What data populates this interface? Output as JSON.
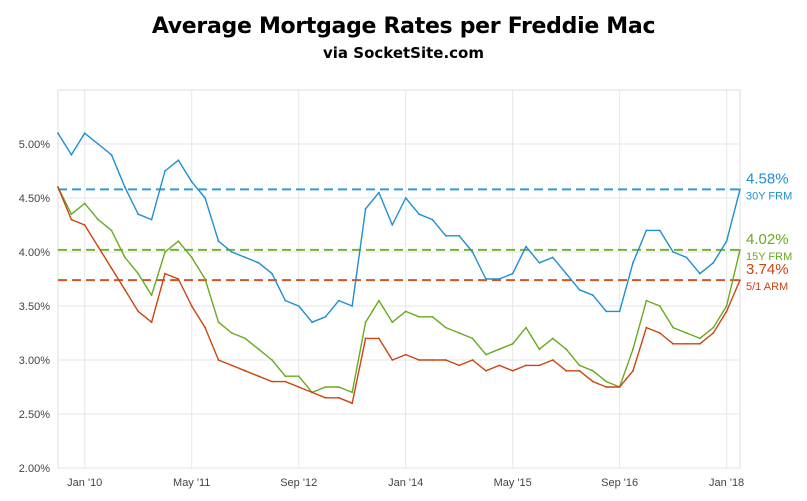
{
  "header": {
    "title": "Average Mortgage Rates per Freddie Mac",
    "subtitle": "via SocketSite.com"
  },
  "chart_data": {
    "type": "line",
    "title": "Average Mortgage Rates per Freddie Mac",
    "subtitle": "via SocketSite.com",
    "xlabel": "",
    "ylabel": "",
    "ylim": [
      2.0,
      5.5
    ],
    "xlim": [
      "2009-09",
      "2018-03"
    ],
    "y_ticks": [
      "2.00%",
      "2.50%",
      "3.00%",
      "3.50%",
      "4.00%",
      "4.50%",
      "5.00%"
    ],
    "x_ticks": [
      {
        "label": "Jan '10",
        "date": "2010-01"
      },
      {
        "label": "May '11",
        "date": "2011-05"
      },
      {
        "label": "Sep '12",
        "date": "2012-09"
      },
      {
        "label": "Jan '14",
        "date": "2014-01"
      },
      {
        "label": "May '15",
        "date": "2015-05"
      },
      {
        "label": "Sep '16",
        "date": "2016-09"
      },
      {
        "label": "Jan '18",
        "date": "2018-01"
      }
    ],
    "grid": true,
    "series": [
      {
        "name": "30Y FRM",
        "color": "#1f8fd1",
        "latest_value": "4.58%",
        "reference_line": 4.58,
        "x": [
          "2009-09",
          "2009-11",
          "2010-01",
          "2010-03",
          "2010-05",
          "2010-07",
          "2010-09",
          "2010-11",
          "2011-01",
          "2011-03",
          "2011-05",
          "2011-07",
          "2011-09",
          "2011-11",
          "2012-01",
          "2012-03",
          "2012-05",
          "2012-07",
          "2012-09",
          "2012-11",
          "2013-01",
          "2013-03",
          "2013-05",
          "2013-07",
          "2013-09",
          "2013-11",
          "2014-01",
          "2014-03",
          "2014-05",
          "2014-07",
          "2014-09",
          "2014-11",
          "2015-01",
          "2015-03",
          "2015-05",
          "2015-07",
          "2015-09",
          "2015-11",
          "2016-01",
          "2016-03",
          "2016-05",
          "2016-07",
          "2016-09",
          "2016-11",
          "2017-01",
          "2017-03",
          "2017-05",
          "2017-07",
          "2017-09",
          "2017-11",
          "2018-01",
          "2018-03"
        ],
        "values": [
          5.1,
          4.9,
          5.1,
          5.0,
          4.9,
          4.6,
          4.35,
          4.3,
          4.75,
          4.85,
          4.65,
          4.5,
          4.1,
          4.0,
          3.95,
          3.9,
          3.8,
          3.55,
          3.5,
          3.35,
          3.4,
          3.55,
          3.5,
          4.4,
          4.55,
          4.25,
          4.5,
          4.35,
          4.3,
          4.15,
          4.15,
          4.0,
          3.75,
          3.75,
          3.8,
          4.05,
          3.9,
          3.95,
          3.8,
          3.65,
          3.6,
          3.45,
          3.45,
          3.9,
          4.2,
          4.2,
          4.0,
          3.95,
          3.8,
          3.9,
          4.1,
          4.58
        ]
      },
      {
        "name": "15Y FRM",
        "color": "#6aaa1f",
        "latest_value": "4.02%",
        "reference_line": 4.02,
        "x": [
          "2009-09",
          "2009-11",
          "2010-01",
          "2010-03",
          "2010-05",
          "2010-07",
          "2010-09",
          "2010-11",
          "2011-01",
          "2011-03",
          "2011-05",
          "2011-07",
          "2011-09",
          "2011-11",
          "2012-01",
          "2012-03",
          "2012-05",
          "2012-07",
          "2012-09",
          "2012-11",
          "2013-01",
          "2013-03",
          "2013-05",
          "2013-07",
          "2013-09",
          "2013-11",
          "2014-01",
          "2014-03",
          "2014-05",
          "2014-07",
          "2014-09",
          "2014-11",
          "2015-01",
          "2015-03",
          "2015-05",
          "2015-07",
          "2015-09",
          "2015-11",
          "2016-01",
          "2016-03",
          "2016-05",
          "2016-07",
          "2016-09",
          "2016-11",
          "2017-01",
          "2017-03",
          "2017-05",
          "2017-07",
          "2017-09",
          "2017-11",
          "2018-01",
          "2018-03"
        ],
        "values": [
          4.6,
          4.35,
          4.45,
          4.3,
          4.2,
          3.95,
          3.8,
          3.6,
          4.0,
          4.1,
          3.95,
          3.75,
          3.35,
          3.25,
          3.2,
          3.1,
          3.0,
          2.85,
          2.85,
          2.7,
          2.75,
          2.75,
          2.7,
          3.35,
          3.55,
          3.35,
          3.45,
          3.4,
          3.4,
          3.3,
          3.25,
          3.2,
          3.05,
          3.1,
          3.15,
          3.3,
          3.1,
          3.2,
          3.1,
          2.95,
          2.9,
          2.8,
          2.75,
          3.1,
          3.55,
          3.5,
          3.3,
          3.25,
          3.2,
          3.3,
          3.5,
          4.02
        ]
      },
      {
        "name": "5/1 ARM",
        "color": "#cc4410",
        "latest_value": "3.74%",
        "reference_line": 3.74,
        "x": [
          "2009-09",
          "2009-11",
          "2010-01",
          "2010-03",
          "2010-05",
          "2010-07",
          "2010-09",
          "2010-11",
          "2011-01",
          "2011-03",
          "2011-05",
          "2011-07",
          "2011-09",
          "2011-11",
          "2012-01",
          "2012-03",
          "2012-05",
          "2012-07",
          "2012-09",
          "2012-11",
          "2013-01",
          "2013-03",
          "2013-05",
          "2013-07",
          "2013-09",
          "2013-11",
          "2014-01",
          "2014-03",
          "2014-05",
          "2014-07",
          "2014-09",
          "2014-11",
          "2015-01",
          "2015-03",
          "2015-05",
          "2015-07",
          "2015-09",
          "2015-11",
          "2016-01",
          "2016-03",
          "2016-05",
          "2016-07",
          "2016-09",
          "2016-11",
          "2017-01",
          "2017-03",
          "2017-05",
          "2017-07",
          "2017-09",
          "2017-11",
          "2018-01",
          "2018-03"
        ],
        "values": [
          4.6,
          4.3,
          4.25,
          4.05,
          3.85,
          3.65,
          3.45,
          3.35,
          3.8,
          3.75,
          3.5,
          3.3,
          3.0,
          2.95,
          2.9,
          2.85,
          2.8,
          2.8,
          2.75,
          2.7,
          2.65,
          2.65,
          2.6,
          3.2,
          3.2,
          3.0,
          3.05,
          3.0,
          3.0,
          3.0,
          2.95,
          3.0,
          2.9,
          2.95,
          2.9,
          2.95,
          2.95,
          3.0,
          2.9,
          2.9,
          2.8,
          2.75,
          2.75,
          2.9,
          3.3,
          3.25,
          3.15,
          3.15,
          3.15,
          3.25,
          3.45,
          3.74
        ]
      }
    ]
  }
}
